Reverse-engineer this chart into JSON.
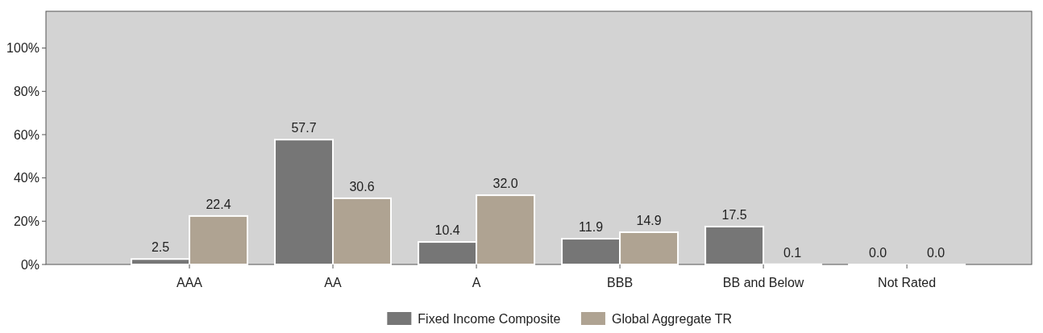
{
  "chart_data": {
    "type": "bar",
    "categories": [
      "AAA",
      "AA",
      "A",
      "BBB",
      "BB and Below",
      "Not Rated"
    ],
    "series": [
      {
        "name": "Fixed Income Composite",
        "color": "#767676",
        "values": [
          2.5,
          57.7,
          10.4,
          11.9,
          17.5,
          0.0
        ],
        "value_labels": [
          "2.5",
          "57.7",
          "10.4",
          "11.9",
          "17.5",
          "0.0"
        ]
      },
      {
        "name": "Global Aggregate TR",
        "color": "#afa392",
        "values": [
          22.4,
          30.6,
          32.0,
          14.9,
          0.1,
          0.0
        ],
        "value_labels": [
          "22.4",
          "30.6",
          "32.0",
          "14.9",
          "0.1",
          "0.0"
        ]
      }
    ],
    "ylim": [
      0,
      117
    ],
    "yticks": [
      {
        "value": 0,
        "label": "0%"
      },
      {
        "value": 20,
        "label": "20%"
      },
      {
        "value": 40,
        "label": "40%"
      },
      {
        "value": 60,
        "label": "60%"
      },
      {
        "value": 80,
        "label": "80%"
      },
      {
        "value": 100,
        "label": "100%"
      }
    ],
    "legend": "bottom",
    "grid": false
  }
}
